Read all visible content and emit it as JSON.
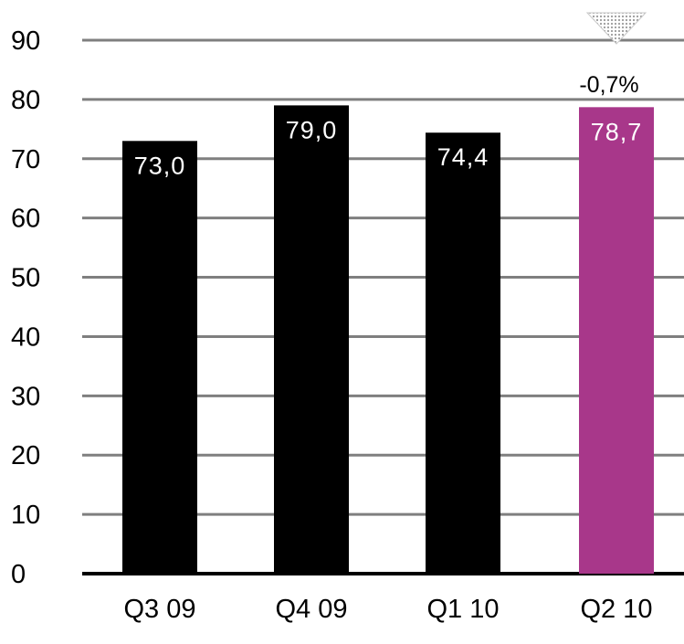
{
  "chart_data": {
    "type": "bar",
    "categories": [
      "Q3 09",
      "Q4 09",
      "Q1 10",
      "Q2 10"
    ],
    "values": [
      73.0,
      79.0,
      74.4,
      78.7
    ],
    "data_labels": [
      "73,0",
      "79,0",
      "74,4",
      "78,7"
    ],
    "ylim": [
      0,
      90
    ],
    "yticks": [
      "0",
      "10",
      "20",
      "30",
      "40",
      "50",
      "60",
      "70",
      "80",
      "90"
    ],
    "grid": true,
    "bar_colors": [
      "#000000",
      "#000000",
      "#000000",
      "#a8378a"
    ],
    "highlight_color": "#a8378a",
    "change_annotation": {
      "text": "-0,7%",
      "category": "Q2 10",
      "direction": "down",
      "icon": "down-triangle-icon"
    }
  }
}
